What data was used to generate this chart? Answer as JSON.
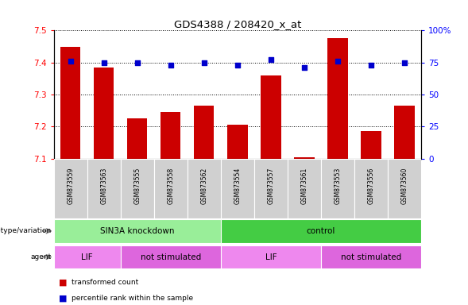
{
  "title": "GDS4388 / 208420_x_at",
  "samples": [
    "GSM873559",
    "GSM873563",
    "GSM873555",
    "GSM873558",
    "GSM873562",
    "GSM873554",
    "GSM873557",
    "GSM873561",
    "GSM873553",
    "GSM873556",
    "GSM873560"
  ],
  "bar_values": [
    7.45,
    7.385,
    7.225,
    7.245,
    7.265,
    7.205,
    7.36,
    7.105,
    7.475,
    7.185,
    7.265
  ],
  "dot_values": [
    76,
    75,
    75,
    73,
    75,
    73,
    77,
    71,
    76,
    73,
    75
  ],
  "ylim_left": [
    7.1,
    7.5
  ],
  "ylim_right": [
    0,
    100
  ],
  "yticks_left": [
    7.1,
    7.2,
    7.3,
    7.4,
    7.5
  ],
  "yticks_right": [
    0,
    25,
    50,
    75,
    100
  ],
  "bar_color": "#cc0000",
  "dot_color": "#0000cc",
  "genotype_groups": [
    {
      "label": "SIN3A knockdown",
      "start": 0,
      "end": 5,
      "color": "#99ee99"
    },
    {
      "label": "control",
      "start": 5,
      "end": 11,
      "color": "#44cc44"
    }
  ],
  "agent_groups": [
    {
      "label": "LIF",
      "start": 0,
      "end": 2,
      "color": "#ee88ee"
    },
    {
      "label": "not stimulated",
      "start": 2,
      "end": 5,
      "color": "#dd66dd"
    },
    {
      "label": "LIF",
      "start": 5,
      "end": 8,
      "color": "#ee88ee"
    },
    {
      "label": "not stimulated",
      "start": 8,
      "end": 11,
      "color": "#dd66dd"
    }
  ],
  "legend_items": [
    {
      "label": "transformed count",
      "color": "#cc0000"
    },
    {
      "label": "percentile rank within the sample",
      "color": "#0000cc"
    }
  ],
  "xtick_bg_color": "#d0d0d0"
}
